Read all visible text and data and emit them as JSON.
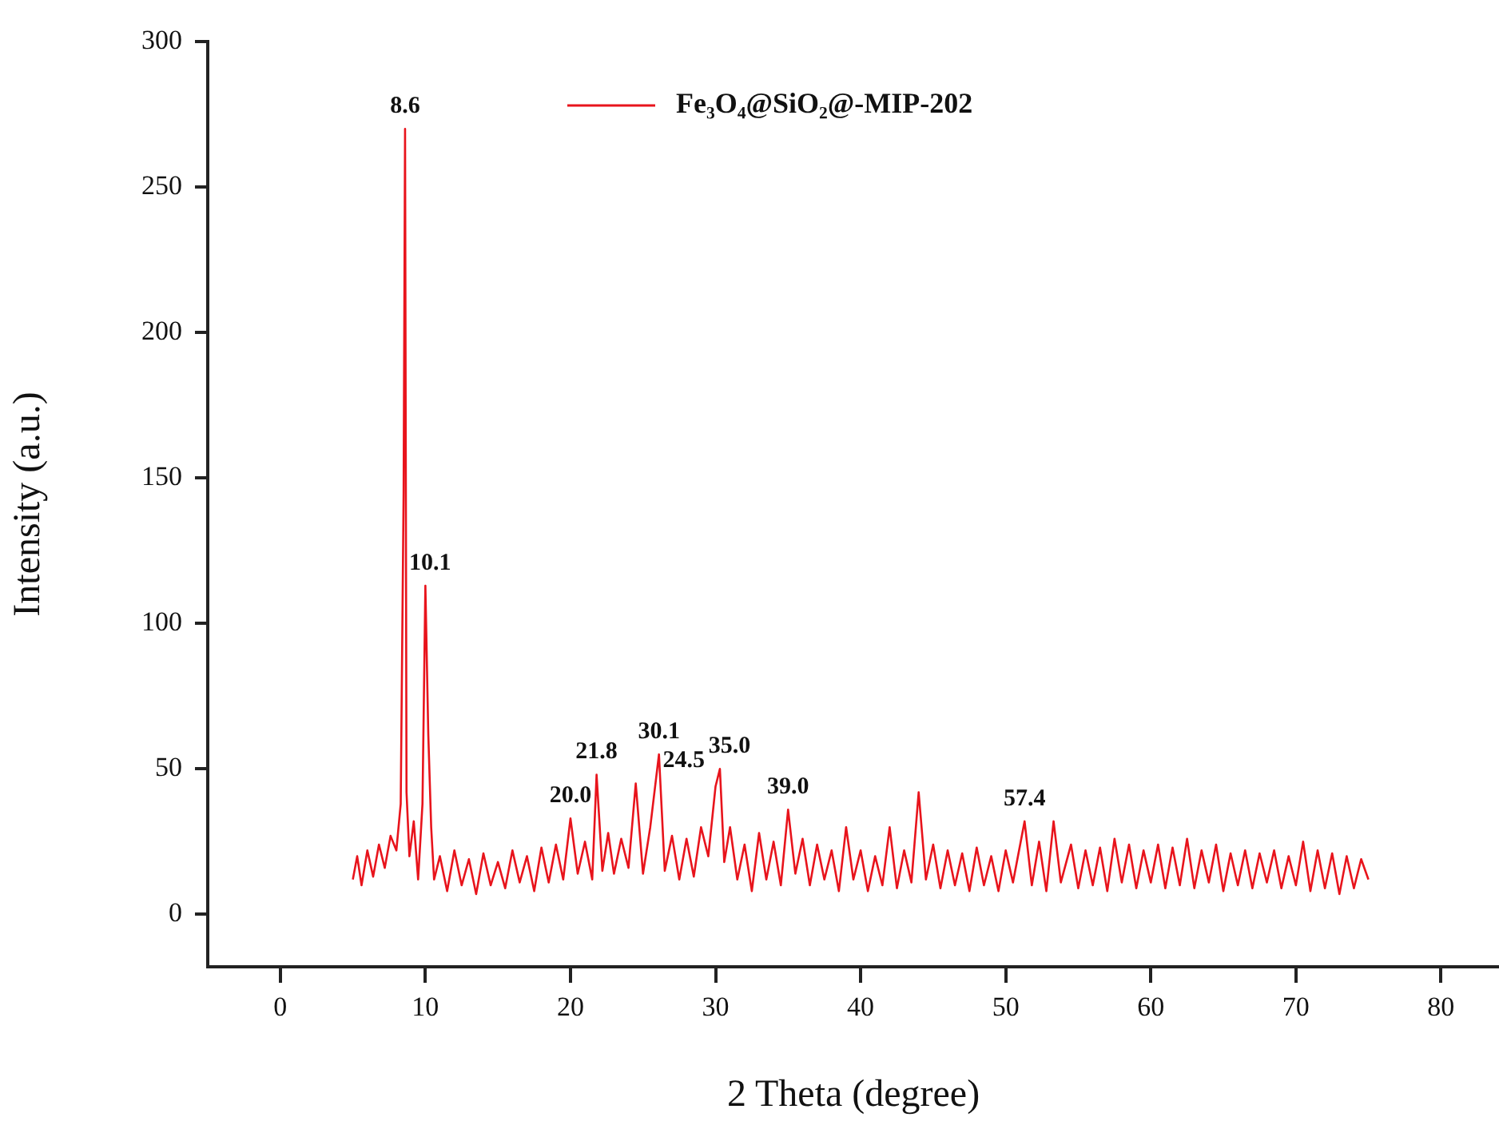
{
  "chart_data": {
    "type": "line",
    "xlabel": "2 Theta (degree)",
    "ylabel": "Intensity (a.u.)",
    "xlim": [
      -5,
      84
    ],
    "xticks": [
      0,
      10,
      20,
      30,
      40,
      50,
      60,
      70,
      80
    ],
    "ylim": [
      -18,
      300
    ],
    "yticks": [
      0,
      50,
      100,
      150,
      200,
      250,
      300
    ],
    "grid": false,
    "legend": "top",
    "marker": "none",
    "line_style": "solid",
    "series": [
      {
        "name": "Fe₃O₄@SiO₂@-MIP-202",
        "color": "#e8141c",
        "x": [
          5.0,
          5.3,
          5.6,
          6.0,
          6.4,
          6.8,
          7.2,
          7.6,
          8.0,
          8.3,
          8.5,
          8.6,
          8.7,
          8.9,
          9.2,
          9.5,
          9.8,
          10.0,
          10.2,
          10.4,
          10.6,
          11.0,
          11.5,
          12.0,
          12.5,
          13.0,
          13.5,
          14.0,
          14.5,
          15.0,
          15.5,
          16.0,
          16.5,
          17.0,
          17.5,
          18.0,
          18.5,
          19.0,
          19.5,
          20.0,
          20.5,
          21.0,
          21.5,
          21.8,
          22.2,
          22.6,
          23.0,
          23.5,
          24.0,
          24.5,
          25.0,
          25.5,
          26.1,
          26.5,
          27.0,
          27.5,
          28.0,
          28.5,
          29.0,
          29.5,
          30.0,
          30.3,
          30.6,
          31.0,
          31.5,
          32.0,
          32.5,
          33.0,
          33.5,
          34.0,
          34.5,
          35.0,
          35.5,
          36.0,
          36.5,
          37.0,
          37.5,
          38.0,
          38.5,
          39.0,
          39.5,
          40.0,
          40.5,
          41.0,
          41.5,
          42.0,
          42.5,
          43.0,
          43.5,
          44.0,
          44.5,
          45.0,
          45.5,
          46.0,
          46.5,
          47.0,
          47.5,
          48.0,
          48.5,
          49.0,
          49.5,
          50.0,
          50.5,
          51.3,
          51.8,
          52.3,
          52.8,
          53.3,
          53.8,
          54.5,
          55.0,
          55.5,
          56.0,
          56.5,
          57.0,
          57.5,
          58.0,
          58.5,
          59.0,
          59.5,
          60.0,
          60.5,
          61.0,
          61.5,
          62.0,
          62.5,
          63.0,
          63.5,
          64.0,
          64.5,
          65.0,
          65.5,
          66.0,
          66.5,
          67.0,
          67.5,
          68.0,
          68.5,
          69.0,
          69.5,
          70.0,
          70.5,
          71.0,
          71.5,
          72.0,
          72.5,
          73.0,
          73.5,
          74.0,
          74.5,
          75.0
        ],
        "values": [
          12,
          20,
          10,
          22,
          13,
          24,
          16,
          27,
          22,
          38,
          145,
          270,
          42,
          20,
          32,
          12,
          38,
          113,
          62,
          30,
          12,
          20,
          8,
          22,
          10,
          19,
          7,
          21,
          10,
          18,
          9,
          22,
          11,
          20,
          8,
          23,
          11,
          24,
          12,
          33,
          14,
          25,
          12,
          48,
          15,
          28,
          14,
          26,
          16,
          45,
          14,
          30,
          55,
          15,
          27,
          12,
          26,
          13,
          30,
          20,
          44,
          50,
          18,
          30,
          12,
          24,
          8,
          28,
          12,
          25,
          10,
          36,
          14,
          26,
          10,
          24,
          12,
          22,
          8,
          30,
          12,
          22,
          8,
          20,
          10,
          30,
          9,
          22,
          11,
          42,
          12,
          24,
          9,
          22,
          10,
          21,
          8,
          23,
          10,
          20,
          8,
          22,
          11,
          32,
          10,
          25,
          8,
          32,
          11,
          24,
          9,
          22,
          10,
          23,
          8,
          26,
          11,
          24,
          9,
          22,
          11,
          24,
          9,
          23,
          10,
          26,
          9,
          22,
          11,
          24,
          8,
          21,
          10,
          22,
          9,
          21,
          11,
          22,
          9,
          20,
          10,
          25,
          8,
          22,
          9,
          21,
          7,
          20,
          9,
          19,
          12
        ]
      }
    ],
    "annotations": [
      {
        "text": "8.6",
        "x": 8.6,
        "y": 270
      },
      {
        "text": "10.1",
        "x": 10.0,
        "y": 113
      },
      {
        "text": "21.8",
        "x": 21.8,
        "y": 48
      },
      {
        "text": "20.0",
        "x": 20.0,
        "y": 33
      },
      {
        "text": "24.5",
        "x": 24.5,
        "y": 45
      },
      {
        "text": "30.1",
        "x": 26.1,
        "y": 55
      },
      {
        "text": "35.0",
        "x": 30.3,
        "y": 50
      },
      {
        "text": "39.0",
        "x": 35.0,
        "y": 36
      },
      {
        "text": "57.4",
        "x": 51.3,
        "y": 32
      }
    ]
  }
}
